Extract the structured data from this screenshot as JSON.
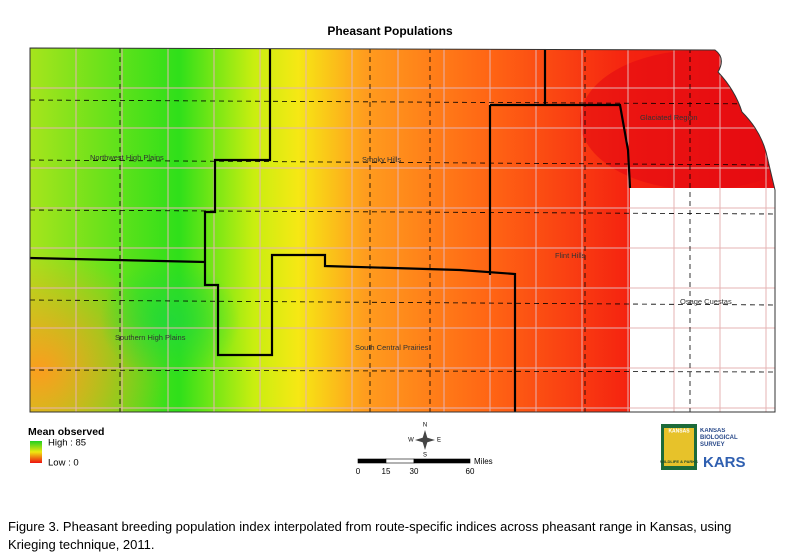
{
  "title": "Pheasant Populations",
  "regions": [
    "Northwest High Plains",
    "Smoky Hills",
    "Glaciated Region",
    "Flint Hills",
    "Osage Cuestas",
    "Southern High Plains",
    "South Central Prairies"
  ],
  "legend": {
    "title": "Mean observed",
    "high": "High : 85",
    "low": "Low : 0"
  },
  "compass": {
    "north": "N",
    "south": "S",
    "east": "E",
    "west": "W"
  },
  "scale": {
    "unit": "Miles",
    "ticks": [
      0,
      15,
      30,
      60
    ]
  },
  "logos": {
    "agency": "KANSAS",
    "agency_sub": "WILDLIFE & PARKS",
    "survey": "KANSAS BIOLOGICAL SURVEY",
    "kars": "KARS"
  },
  "caption_lines": [
    "Figure 3. Pheasant breeding population index interpolated from route-specific indices across pheasant range in Kansas, using",
    "Krieging technique, 2011."
  ]
}
